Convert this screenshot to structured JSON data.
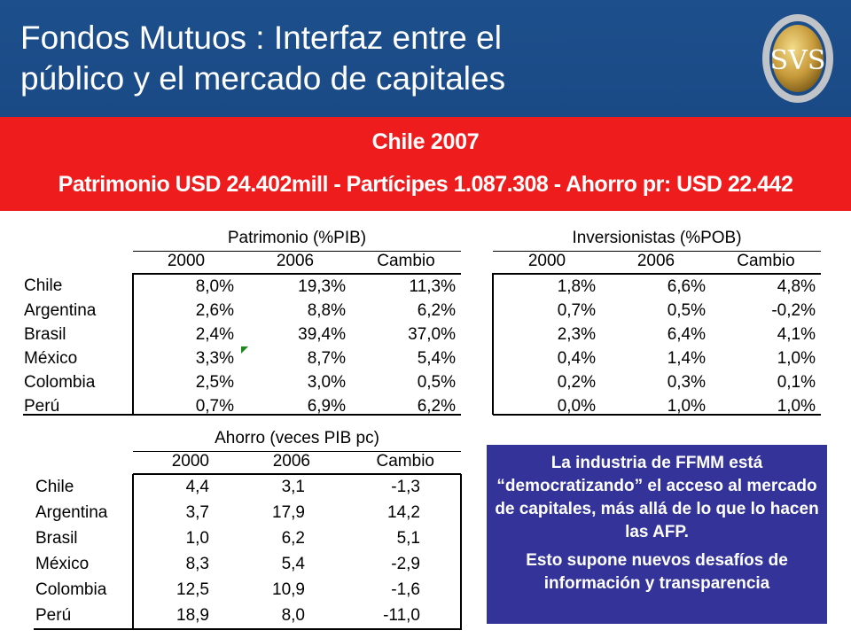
{
  "header": {
    "title_line1": "Fondos Mutuos : Interfaz entre el",
    "title_line2": "público y el mercado de capitales",
    "logo_text": "SVS"
  },
  "banner": {
    "line1": "Chile 2007",
    "line2": "Patrimonio  USD 24.402mill - Partícipes 1.087.308 - Ahorro pr: USD 22.442"
  },
  "tables": {
    "patrimonio": {
      "caption": "Patrimonio (%PIB)",
      "headers": [
        "2000",
        "2006",
        "Cambio"
      ],
      "rows": [
        {
          "country": "Chile",
          "values": [
            "8,0%",
            "19,3%",
            "11,3%"
          ]
        },
        {
          "country": "Argentina",
          "values": [
            "2,6%",
            "8,8%",
            "6,2%"
          ]
        },
        {
          "country": "Brasil",
          "values": [
            "2,4%",
            "39,4%",
            "37,0%"
          ]
        },
        {
          "country": "México",
          "values": [
            "3,3%",
            "8,7%",
            "5,4%"
          ]
        },
        {
          "country": "Colombia",
          "values": [
            "2,5%",
            "3,0%",
            "0,5%"
          ]
        },
        {
          "country": "Perú",
          "values": [
            "0,7%",
            "6,9%",
            "6,2%"
          ]
        }
      ]
    },
    "inversionistas": {
      "caption": "Inversionistas (%POB)",
      "headers": [
        "2000",
        "2006",
        "Cambio"
      ],
      "rows": [
        {
          "values": [
            "1,8%",
            "6,6%",
            "4,8%"
          ]
        },
        {
          "values": [
            "0,7%",
            "0,5%",
            "-0,2%"
          ]
        },
        {
          "values": [
            "2,3%",
            "6,4%",
            "4,1%"
          ]
        },
        {
          "values": [
            "0,4%",
            "1,4%",
            "1,0%"
          ]
        },
        {
          "values": [
            "0,2%",
            "0,3%",
            "0,1%"
          ]
        },
        {
          "values": [
            "0,0%",
            "1,0%",
            "1,0%"
          ]
        }
      ]
    },
    "ahorro": {
      "caption": "Ahorro (veces PIB pc)",
      "headers": [
        "2000",
        "2006",
        "Cambio"
      ],
      "rows": [
        {
          "country": "Chile",
          "values": [
            "4,4",
            "3,1",
            "-1,3"
          ]
        },
        {
          "country": "Argentina",
          "values": [
            "3,7",
            "17,9",
            "14,2"
          ]
        },
        {
          "country": "Brasil",
          "values": [
            "1,0",
            "6,2",
            "5,1"
          ]
        },
        {
          "country": "México",
          "values": [
            "8,3",
            "5,4",
            "-2,9"
          ]
        },
        {
          "country": "Colombia",
          "values": [
            "12,5",
            "10,9",
            "-1,6"
          ]
        },
        {
          "country": "Perú",
          "values": [
            "18,9",
            "8,0",
            "-11,0"
          ]
        }
      ]
    }
  },
  "note": {
    "paragraph1": "La industria de FFMM está “democratizando” el acceso al mercado de capitales, más allá de lo que lo hacen las AFP.",
    "paragraph2": "Esto supone nuevos desafíos de información y transparencia"
  },
  "colors": {
    "header_blue": "#1d4f8c",
    "banner_red": "#ee1c1c",
    "note_blue": "#33339a"
  }
}
